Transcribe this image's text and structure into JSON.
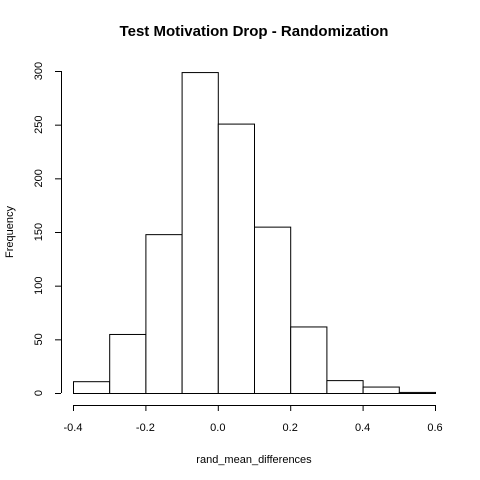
{
  "chart_data": {
    "type": "bar",
    "title": "Test Motivation Drop - Randomization",
    "xlabel": "rand_mean_differences",
    "ylabel": "Frequency",
    "bin_edges": [
      -0.4,
      -0.3,
      -0.2,
      -0.1,
      0.0,
      0.1,
      0.2,
      0.3,
      0.4,
      0.5,
      0.6
    ],
    "values": [
      11,
      55,
      148,
      299,
      251,
      155,
      62,
      12,
      6,
      1
    ],
    "xlim": [
      -0.4,
      0.6
    ],
    "ylim": [
      0,
      300
    ],
    "x_ticks": [
      -0.4,
      -0.2,
      0.0,
      0.2,
      0.4,
      0.6
    ],
    "x_tick_labels": [
      "-0.4",
      "-0.2",
      "0.0",
      "0.2",
      "0.4",
      "0.6"
    ],
    "y_ticks": [
      0,
      50,
      100,
      150,
      200,
      250,
      300
    ],
    "y_tick_labels": [
      "0",
      "50",
      "100",
      "150",
      "200",
      "250",
      "300"
    ],
    "grid": false,
    "colors": {
      "bar_fill": "#ffffff",
      "bar_stroke": "#000000"
    }
  }
}
